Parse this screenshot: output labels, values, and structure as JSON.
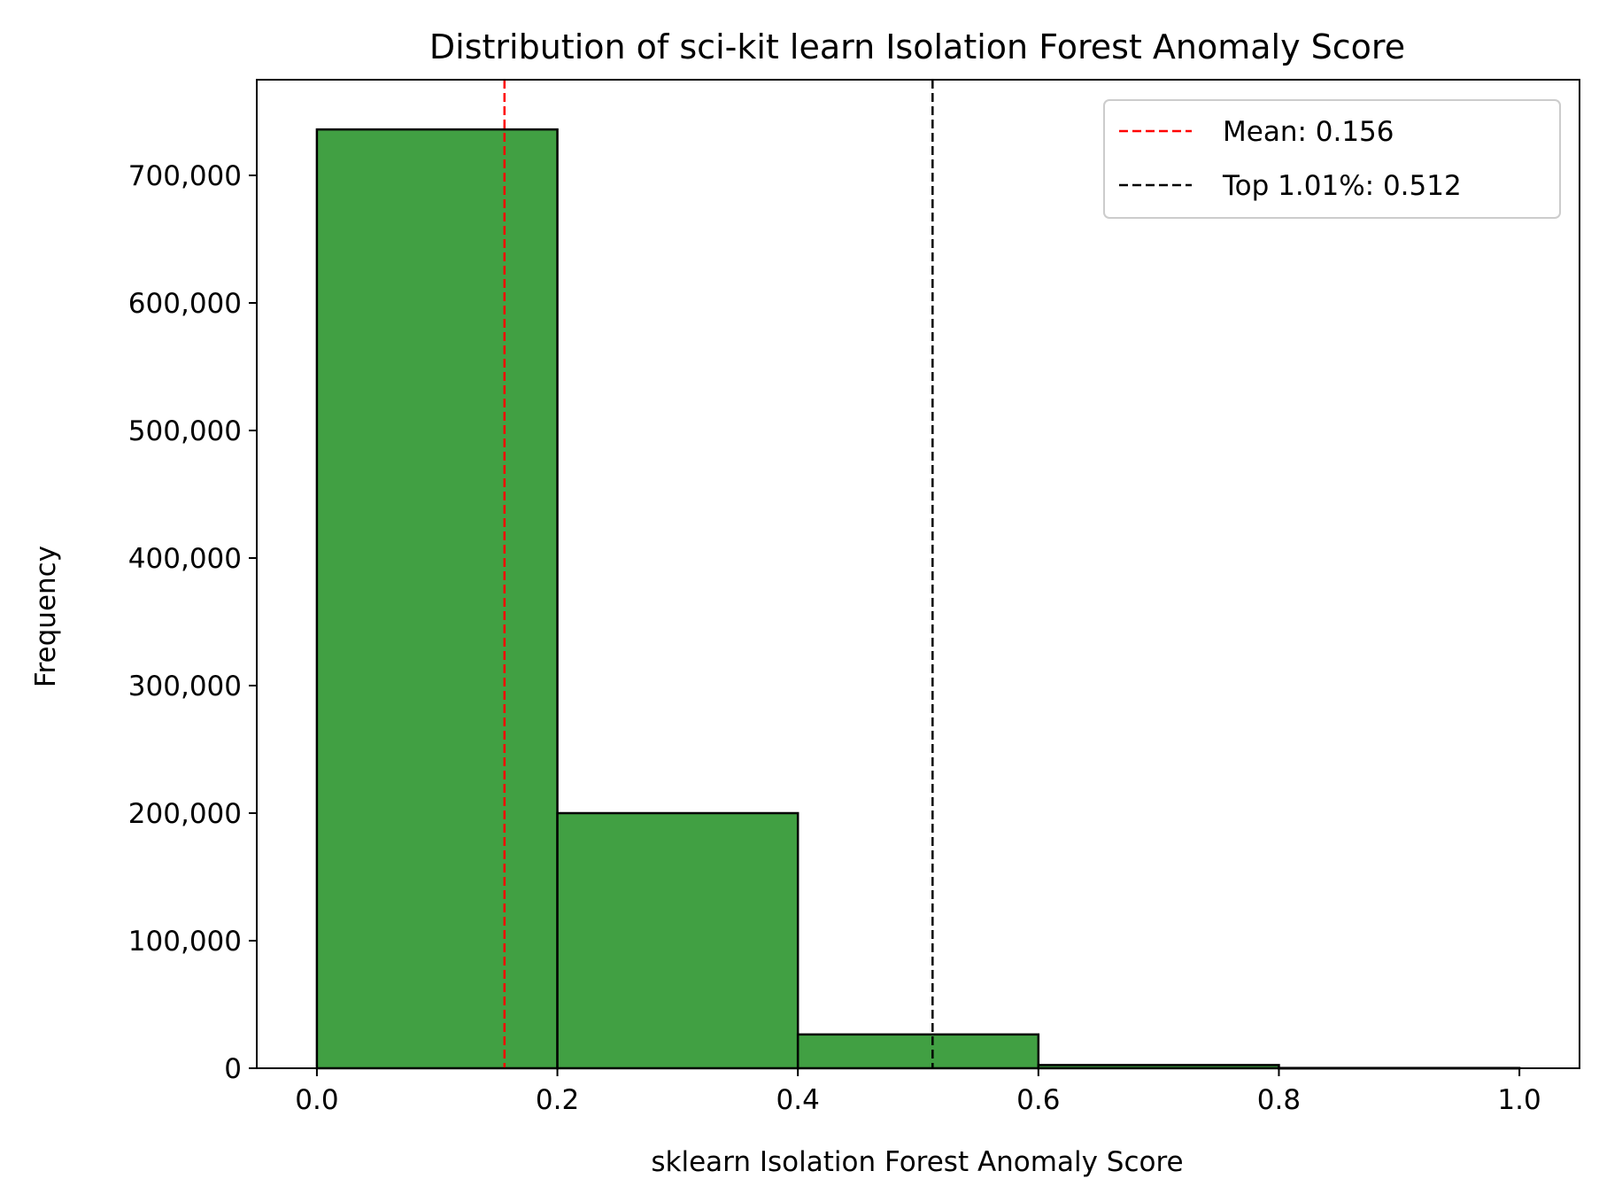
{
  "chart_data": {
    "type": "bar",
    "title": "Distribution of sci-kit learn Isolation Forest Anomaly Score",
    "xlabel": "sklearn Isolation Forest Anomaly Score",
    "ylabel": "Frequency",
    "xlim": [
      -0.05,
      1.05
    ],
    "ylim": [
      0,
      775000
    ],
    "x_ticks": [
      0.0,
      0.2,
      0.4,
      0.6,
      0.8,
      1.0
    ],
    "x_tick_labels": [
      "0.0",
      "0.2",
      "0.4",
      "0.6",
      "0.8",
      "1.0"
    ],
    "y_ticks": [
      0,
      100000,
      200000,
      300000,
      400000,
      500000,
      600000,
      700000
    ],
    "y_tick_labels": [
      "0",
      "100,000",
      "200,000",
      "300,000",
      "400,000",
      "500,000",
      "600,000",
      "700,000"
    ],
    "bins": [
      {
        "start": 0.0,
        "end": 0.2,
        "count": 736000
      },
      {
        "start": 0.2,
        "end": 0.4,
        "count": 200000
      },
      {
        "start": 0.4,
        "end": 0.6,
        "count": 26500
      },
      {
        "start": 0.6,
        "end": 0.8,
        "count": 2500
      },
      {
        "start": 0.8,
        "end": 1.0,
        "count": 200
      }
    ],
    "bar_color": "#41a043",
    "bar_edge_color": "#000000",
    "grid": false,
    "reference_lines": [
      {
        "x": 0.156,
        "label": "Mean: 0.156",
        "color": "#ff0000",
        "style": "dashed"
      },
      {
        "x": 0.512,
        "label": "Top 1.01%: 0.512",
        "color": "#000000",
        "style": "dashed"
      }
    ],
    "legend_position": "top-right"
  }
}
